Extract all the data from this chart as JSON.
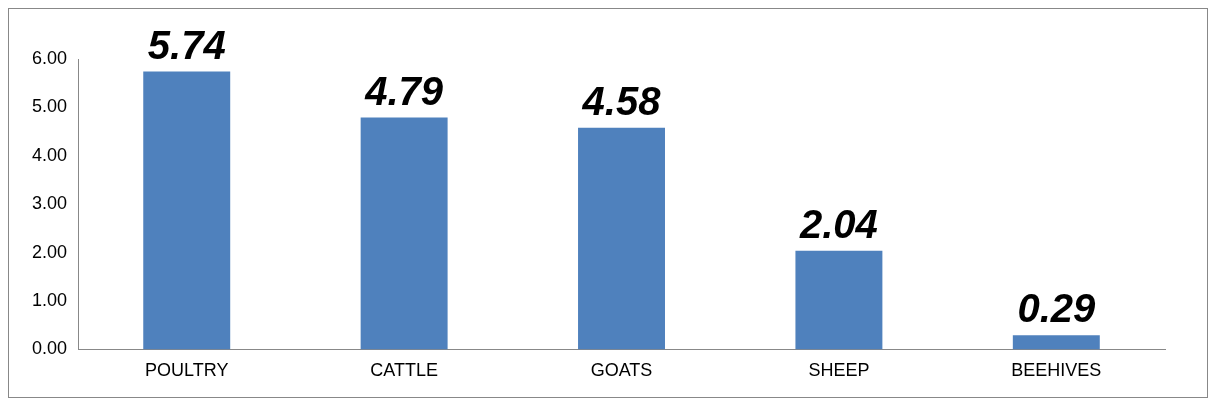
{
  "chart_data": {
    "type": "bar",
    "categories": [
      "POULTRY",
      "CATTLE",
      "GOATS",
      "SHEEP",
      "BEEHIVES"
    ],
    "values": [
      5.74,
      4.79,
      4.58,
      2.04,
      0.29
    ],
    "color": "#4f81bd",
    "ylim": [
      0,
      6
    ],
    "yticks": [
      {
        "value": 0,
        "label": "0.00"
      },
      {
        "value": 1,
        "label": "1.00"
      },
      {
        "value": 2,
        "label": "2.00"
      },
      {
        "value": 3,
        "label": "3.00"
      },
      {
        "value": 4,
        "label": "4.00"
      },
      {
        "value": 5,
        "label": "5.00"
      },
      {
        "value": 6,
        "label": "6.00"
      }
    ],
    "grid": false,
    "legend": false,
    "data_labels": true
  }
}
